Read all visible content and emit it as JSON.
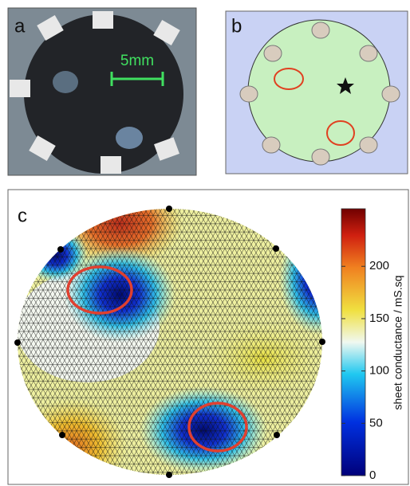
{
  "panels": {
    "a": {
      "label": "a",
      "scale_bar": "5mm"
    },
    "b": {
      "label": "b"
    },
    "c": {
      "label": "c",
      "colorbar": {
        "label": "sheet conductance / mS.sq",
        "lim": [
          0,
          255
        ],
        "ticks": [
          0,
          50,
          100,
          150,
          200
        ]
      }
    }
  }
}
